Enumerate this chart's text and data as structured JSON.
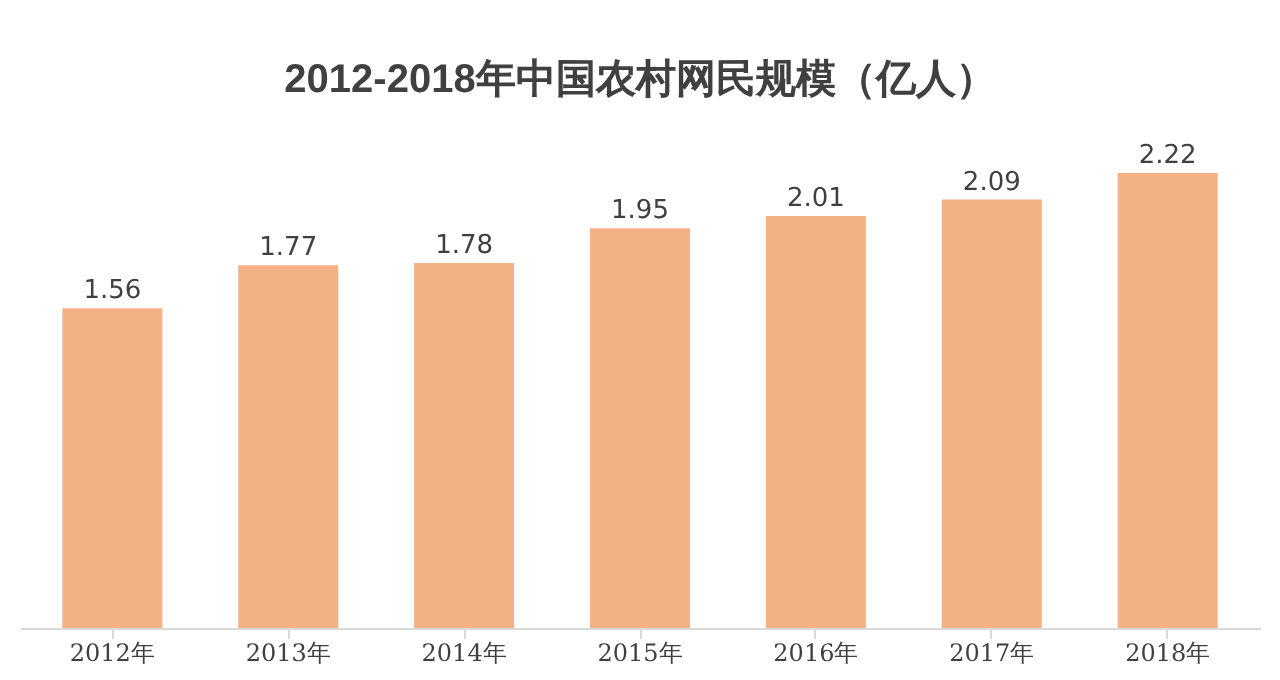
{
  "chart_data": {
    "type": "bar",
    "title": "2012-2018年中国农村网民规模（亿人）",
    "categories": [
      "2012年",
      "2013年",
      "2014年",
      "2015年",
      "2016年",
      "2017年",
      "2018年"
    ],
    "values": [
      1.56,
      1.77,
      1.78,
      1.95,
      2.01,
      2.09,
      2.22
    ],
    "color": "#f4b183",
    "data_labels": true,
    "grid": false,
    "tick_labels": "x"
  }
}
